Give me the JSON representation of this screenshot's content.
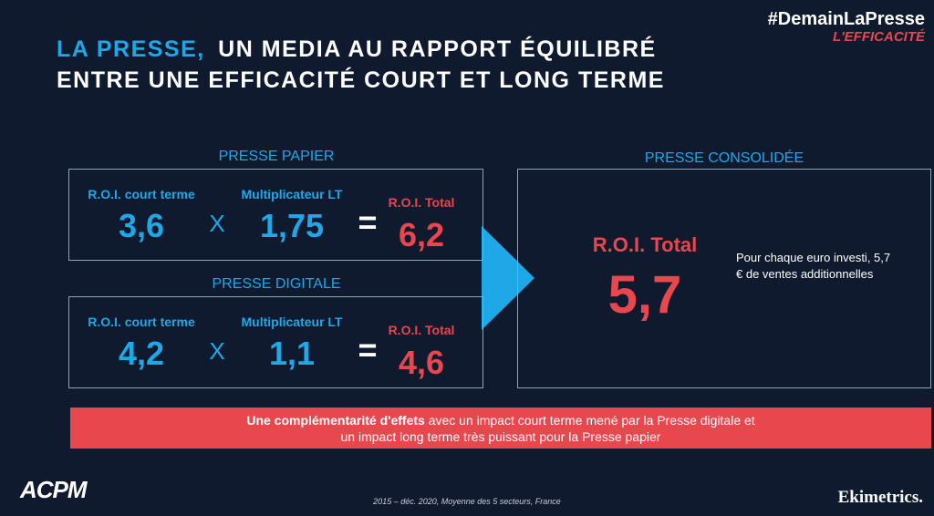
{
  "header": {
    "hashtag": "#DemainLaPresse",
    "subtag": "L'EFFICACITÉ"
  },
  "title": {
    "highlight": "LA PRESSE,",
    "line1": "UN MEDIA AU RAPPORT ÉQUILIBRÉ",
    "line2": "ENTRE UNE EFFICACITÉ COURT ET LONG TERME"
  },
  "panels": [
    {
      "label": "PRESSE PAPIER",
      "short_label": "R.O.I. court terme",
      "short_value": "3,6",
      "times": "X",
      "mult_label": "Multiplicateur LT",
      "mult_value": "1,75",
      "equals": "=",
      "total_label": "R.O.I. Total",
      "total_value": "6,2"
    },
    {
      "label": "PRESSE DIGITALE",
      "short_label": "R.O.I. court terme",
      "short_value": "4,2",
      "times": "X",
      "mult_label": "Multiplicateur LT",
      "mult_value": "1,1",
      "equals": "=",
      "total_label": "R.O.I. Total",
      "total_value": "4,6"
    }
  ],
  "consolidated": {
    "label": "PRESSE CONSOLIDÉE",
    "total_label": "R.O.I. Total",
    "total_value": "5,7",
    "note": "Pour chaque euro investi, 5,7 € de ventes additionnelles"
  },
  "banner": {
    "bold": "Une complémentarité d'effets",
    "line1": "avec un impact court terme mené par la Presse digitale et",
    "line2": "un impact long terme très puissant pour la Presse papier"
  },
  "footer": {
    "logo_left": "ACPM",
    "source": "2015 – déc. 2020, Moyenne des 5 secteurs, France",
    "logo_right": "Ekimetrics."
  }
}
